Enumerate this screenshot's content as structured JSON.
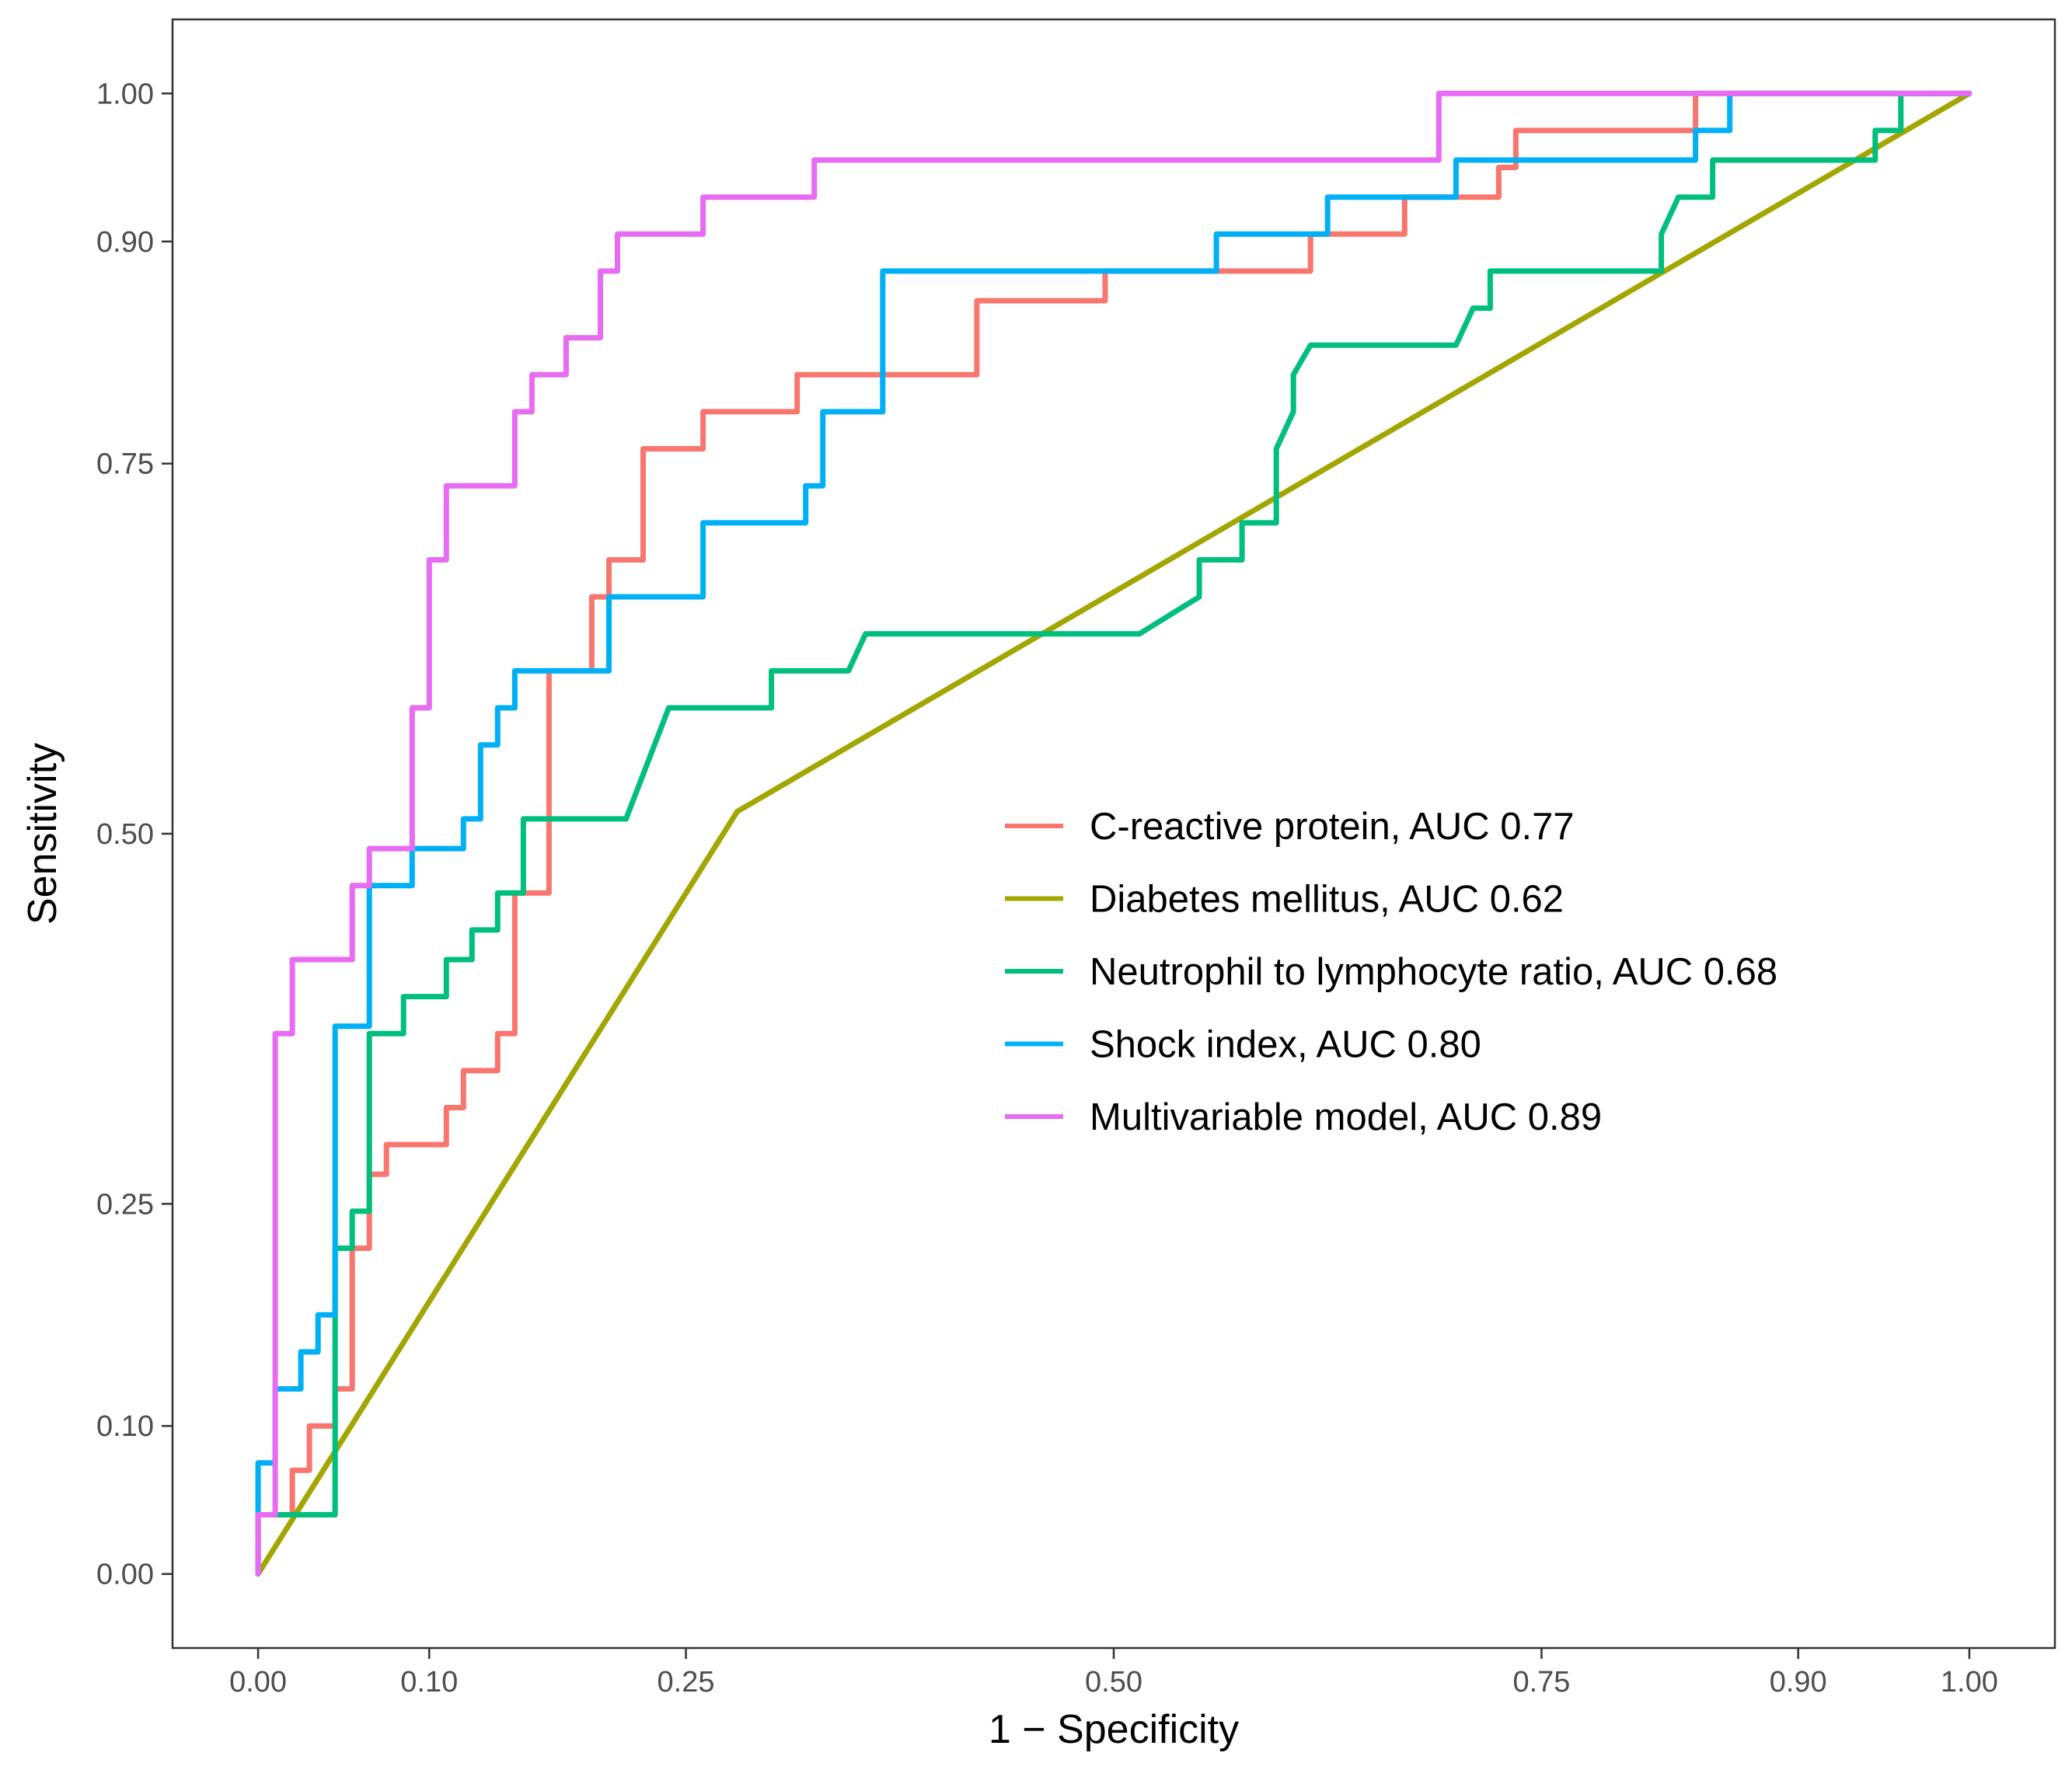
{
  "chart_data": {
    "type": "line",
    "title": "",
    "xlabel": "1 − Specificity",
    "ylabel": "Sensitivity",
    "xlim": [
      -0.05,
      1.05
    ],
    "ylim": [
      -0.05,
      1.05
    ],
    "grid": false,
    "legend_position": "center-right",
    "x_ticks": [
      {
        "value": 0.0,
        "label": "0.00"
      },
      {
        "value": 0.1,
        "label": "0.10"
      },
      {
        "value": 0.25,
        "label": "0.25"
      },
      {
        "value": 0.5,
        "label": "0.50"
      },
      {
        "value": 0.75,
        "label": "0.75"
      },
      {
        "value": 0.9,
        "label": "0.90"
      },
      {
        "value": 1.0,
        "label": "1.00"
      }
    ],
    "y_ticks": [
      {
        "value": 0.0,
        "label": "0.00"
      },
      {
        "value": 0.1,
        "label": "0.10"
      },
      {
        "value": 0.25,
        "label": "0.25"
      },
      {
        "value": 0.5,
        "label": "0.50"
      },
      {
        "value": 0.75,
        "label": "0.75"
      },
      {
        "value": 0.9,
        "label": "0.90"
      },
      {
        "value": 1.0,
        "label": "1.00"
      }
    ],
    "series": [
      {
        "name": "C-reactive protein, AUC 0.77",
        "color": "#F8766D",
        "points": [
          [
            0,
            0
          ],
          [
            0,
            0.04
          ],
          [
            0.02,
            0.04
          ],
          [
            0.02,
            0.07
          ],
          [
            0.03,
            0.07
          ],
          [
            0.03,
            0.1
          ],
          [
            0.045,
            0.1
          ],
          [
            0.045,
            0.125
          ],
          [
            0.055,
            0.125
          ],
          [
            0.055,
            0.22
          ],
          [
            0.065,
            0.22
          ],
          [
            0.065,
            0.27
          ],
          [
            0.075,
            0.27
          ],
          [
            0.075,
            0.29
          ],
          [
            0.11,
            0.29
          ],
          [
            0.11,
            0.315
          ],
          [
            0.12,
            0.315
          ],
          [
            0.12,
            0.34
          ],
          [
            0.14,
            0.34
          ],
          [
            0.14,
            0.365
          ],
          [
            0.15,
            0.365
          ],
          [
            0.15,
            0.46
          ],
          [
            0.17,
            0.46
          ],
          [
            0.17,
            0.61
          ],
          [
            0.195,
            0.61
          ],
          [
            0.195,
            0.66
          ],
          [
            0.205,
            0.66
          ],
          [
            0.205,
            0.685
          ],
          [
            0.225,
            0.685
          ],
          [
            0.225,
            0.76
          ],
          [
            0.26,
            0.76
          ],
          [
            0.26,
            0.785
          ],
          [
            0.315,
            0.785
          ],
          [
            0.315,
            0.81
          ],
          [
            0.42,
            0.81
          ],
          [
            0.42,
            0.86
          ],
          [
            0.495,
            0.86
          ],
          [
            0.495,
            0.88
          ],
          [
            0.615,
            0.88
          ],
          [
            0.615,
            0.905
          ],
          [
            0.67,
            0.905
          ],
          [
            0.67,
            0.93
          ],
          [
            0.725,
            0.93
          ],
          [
            0.725,
            0.95
          ],
          [
            0.735,
            0.95
          ],
          [
            0.735,
            0.975
          ],
          [
            0.84,
            0.975
          ],
          [
            0.84,
            1
          ],
          [
            1,
            1
          ]
        ]
      },
      {
        "name": "Diabetes mellitus, AUC 0.62",
        "color": "#A3A500",
        "points": [
          [
            0,
            0
          ],
          [
            0.28,
            0.515
          ],
          [
            1,
            1
          ]
        ]
      },
      {
        "name": "Neutrophil to lymphocyte ratio, AUC 0.68",
        "color": "#00BF7D",
        "points": [
          [
            0,
            0
          ],
          [
            0,
            0.04
          ],
          [
            0.045,
            0.04
          ],
          [
            0.045,
            0.22
          ],
          [
            0.055,
            0.22
          ],
          [
            0.055,
            0.245
          ],
          [
            0.065,
            0.245
          ],
          [
            0.065,
            0.365
          ],
          [
            0.085,
            0.365
          ],
          [
            0.085,
            0.39
          ],
          [
            0.11,
            0.39
          ],
          [
            0.11,
            0.415
          ],
          [
            0.125,
            0.415
          ],
          [
            0.125,
            0.435
          ],
          [
            0.14,
            0.435
          ],
          [
            0.14,
            0.46
          ],
          [
            0.155,
            0.46
          ],
          [
            0.155,
            0.51
          ],
          [
            0.215,
            0.51
          ],
          [
            0.24,
            0.585
          ],
          [
            0.3,
            0.585
          ],
          [
            0.3,
            0.61
          ],
          [
            0.345,
            0.61
          ],
          [
            0.355,
            0.635
          ],
          [
            0.515,
            0.635
          ],
          [
            0.55,
            0.66
          ],
          [
            0.55,
            0.685
          ],
          [
            0.575,
            0.685
          ],
          [
            0.575,
            0.71
          ],
          [
            0.595,
            0.71
          ],
          [
            0.595,
            0.76
          ],
          [
            0.605,
            0.785
          ],
          [
            0.605,
            0.81
          ],
          [
            0.615,
            0.83
          ],
          [
            0.7,
            0.83
          ],
          [
            0.71,
            0.855
          ],
          [
            0.72,
            0.855
          ],
          [
            0.72,
            0.88
          ],
          [
            0.82,
            0.88
          ],
          [
            0.82,
            0.905
          ],
          [
            0.83,
            0.93
          ],
          [
            0.85,
            0.93
          ],
          [
            0.85,
            0.955
          ],
          [
            0.945,
            0.955
          ],
          [
            0.945,
            0.975
          ],
          [
            0.96,
            0.975
          ],
          [
            0.96,
            1
          ],
          [
            1,
            1
          ]
        ]
      },
      {
        "name": "Shock index, AUC 0.80",
        "color": "#00B0F6",
        "points": [
          [
            0,
            0
          ],
          [
            0,
            0.075
          ],
          [
            0.01,
            0.075
          ],
          [
            0.01,
            0.125
          ],
          [
            0.025,
            0.125
          ],
          [
            0.025,
            0.15
          ],
          [
            0.035,
            0.15
          ],
          [
            0.035,
            0.175
          ],
          [
            0.045,
            0.175
          ],
          [
            0.045,
            0.37
          ],
          [
            0.065,
            0.37
          ],
          [
            0.065,
            0.465
          ],
          [
            0.09,
            0.465
          ],
          [
            0.09,
            0.49
          ],
          [
            0.12,
            0.49
          ],
          [
            0.12,
            0.51
          ],
          [
            0.13,
            0.51
          ],
          [
            0.13,
            0.56
          ],
          [
            0.14,
            0.56
          ],
          [
            0.14,
            0.585
          ],
          [
            0.15,
            0.585
          ],
          [
            0.15,
            0.61
          ],
          [
            0.205,
            0.61
          ],
          [
            0.205,
            0.66
          ],
          [
            0.26,
            0.66
          ],
          [
            0.26,
            0.71
          ],
          [
            0.32,
            0.71
          ],
          [
            0.32,
            0.735
          ],
          [
            0.33,
            0.735
          ],
          [
            0.33,
            0.785
          ],
          [
            0.365,
            0.785
          ],
          [
            0.365,
            0.88
          ],
          [
            0.56,
            0.88
          ],
          [
            0.56,
            0.905
          ],
          [
            0.625,
            0.905
          ],
          [
            0.625,
            0.93
          ],
          [
            0.7,
            0.93
          ],
          [
            0.7,
            0.955
          ],
          [
            0.84,
            0.955
          ],
          [
            0.84,
            0.975
          ],
          [
            0.86,
            0.975
          ],
          [
            0.86,
            1
          ],
          [
            1,
            1
          ]
        ]
      },
      {
        "name": "Multivariable model, AUC 0.89",
        "color": "#E76BF3",
        "points": [
          [
            0,
            0
          ],
          [
            0,
            0.04
          ],
          [
            0.01,
            0.04
          ],
          [
            0.01,
            0.365
          ],
          [
            0.02,
            0.365
          ],
          [
            0.02,
            0.415
          ],
          [
            0.055,
            0.415
          ],
          [
            0.055,
            0.465
          ],
          [
            0.065,
            0.465
          ],
          [
            0.065,
            0.49
          ],
          [
            0.09,
            0.49
          ],
          [
            0.09,
            0.585
          ],
          [
            0.1,
            0.585
          ],
          [
            0.1,
            0.685
          ],
          [
            0.11,
            0.685
          ],
          [
            0.11,
            0.735
          ],
          [
            0.15,
            0.735
          ],
          [
            0.15,
            0.785
          ],
          [
            0.16,
            0.785
          ],
          [
            0.16,
            0.81
          ],
          [
            0.18,
            0.81
          ],
          [
            0.18,
            0.835
          ],
          [
            0.2,
            0.835
          ],
          [
            0.2,
            0.88
          ],
          [
            0.21,
            0.88
          ],
          [
            0.21,
            0.905
          ],
          [
            0.26,
            0.905
          ],
          [
            0.26,
            0.93
          ],
          [
            0.325,
            0.93
          ],
          [
            0.325,
            0.955
          ],
          [
            0.69,
            0.955
          ],
          [
            0.69,
            1
          ],
          [
            1,
            1
          ]
        ]
      }
    ]
  }
}
